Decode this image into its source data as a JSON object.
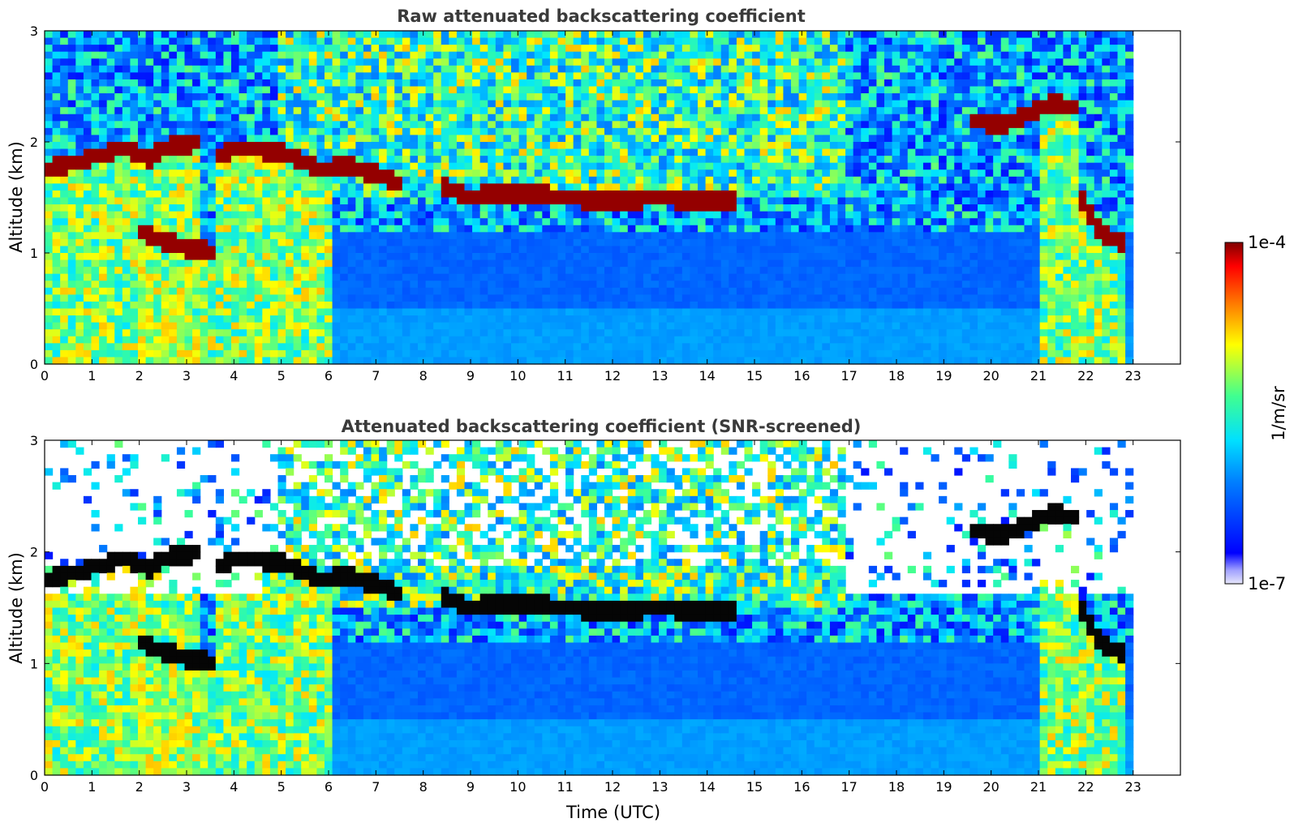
{
  "chart_data": [
    {
      "type": "heatmap",
      "title": "Raw attenuated backscattering coefficient",
      "xlabel": "",
      "ylabel": "Altitude (km)",
      "xlim": [
        0,
        24
      ],
      "ylim": [
        0,
        3
      ],
      "xticks": [
        "0",
        "1",
        "2",
        "3",
        "4",
        "5",
        "6",
        "7",
        "8",
        "9",
        "10",
        "11",
        "12",
        "13",
        "14",
        "15",
        "16",
        "17",
        "18",
        "19",
        "20",
        "21",
        "22",
        "23"
      ],
      "yticks": [
        "0",
        "1",
        "2",
        "3"
      ],
      "data_end_hour": 23,
      "grid": false,
      "cloud_layers": [
        {
          "x": [
            0,
            1.0,
            1.6,
            2.2,
            2.6,
            3.3
          ],
          "y": [
            1.75,
            1.85,
            1.95,
            1.85,
            1.95,
            2.0
          ]
        },
        {
          "x": [
            3.6,
            4.0,
            5.0,
            5.8,
            6.5,
            7.0,
            7.6
          ],
          "y": [
            1.85,
            1.95,
            1.9,
            1.75,
            1.78,
            1.7,
            1.6
          ]
        },
        {
          "x": [
            2.0,
            2.5,
            3.0,
            3.6
          ],
          "y": [
            1.2,
            1.1,
            1.05,
            1.0
          ]
        },
        {
          "x": [
            8.3,
            9.0,
            10.0,
            11.0,
            12.0,
            13.0,
            14.0,
            14.6
          ],
          "y": [
            1.6,
            1.5,
            1.55,
            1.5,
            1.45,
            1.5,
            1.45,
            1.47
          ]
        },
        {
          "x": [
            19.5,
            20.3,
            21.0,
            21.4,
            21.8
          ],
          "y": [
            2.2,
            2.15,
            2.3,
            2.35,
            2.3
          ]
        },
        {
          "x": [
            21.9,
            22.3,
            22.9
          ],
          "y": [
            1.5,
            1.2,
            1.05
          ]
        }
      ]
    },
    {
      "type": "heatmap",
      "title": "Attenuated backscattering coefficient (SNR-screened)",
      "xlabel": "Time (UTC)",
      "ylabel": "Altitude (km)",
      "xlim": [
        0,
        24
      ],
      "ylim": [
        0,
        3
      ],
      "xticks": [
        "0",
        "1",
        "2",
        "3",
        "4",
        "5",
        "6",
        "7",
        "8",
        "9",
        "10",
        "11",
        "12",
        "13",
        "14",
        "15",
        "16",
        "17",
        "18",
        "19",
        "20",
        "21",
        "22",
        "23"
      ],
      "yticks": [
        "0",
        "1",
        "2",
        "3"
      ],
      "data_end_hour": 23,
      "grid": false
    }
  ],
  "colorbar": {
    "min_label": "1e-7",
    "max_label": "1e-4",
    "label": "1/m/sr",
    "scale": "log",
    "colormap": "jet"
  }
}
